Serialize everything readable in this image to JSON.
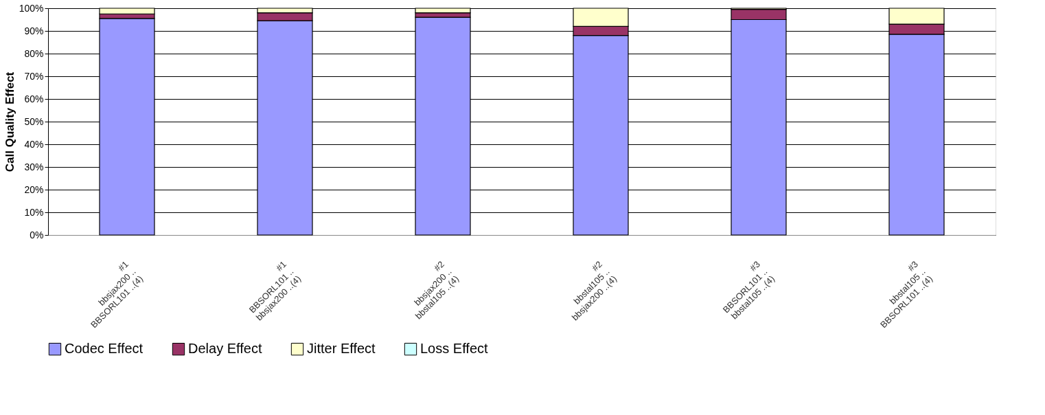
{
  "chart_data": {
    "type": "bar",
    "stacked": true,
    "ylabel": "Call Quality Effect",
    "categories": [
      "#1\nbbsjax200 ..\nBBSORL101 ..(4)",
      "#1\nBBSORL101 ..\nbbsjax200 ..(4)",
      "#2\nbbsjax200 ..\nbbstal105 ..(4)",
      "#2\nbbstal105 ..\nbbsjax200 ..(4)",
      "#3\nBBSORL101 ..\nbbstal105 ..(4)",
      "#3\nbbstal105 ..\nBBSORL101 ..(4)"
    ],
    "series": [
      {
        "name": "Codec Effect",
        "color": "#9999ff",
        "values": [
          95.5,
          94.5,
          96,
          88,
          95,
          88.5
        ]
      },
      {
        "name": "Delay Effect",
        "color": "#993366",
        "values": [
          2,
          3.5,
          2,
          4,
          4.5,
          4.5
        ]
      },
      {
        "name": "Jitter Effect",
        "color": "#ffffcc",
        "values": [
          2.5,
          2,
          2,
          8,
          0.5,
          7
        ]
      },
      {
        "name": "Loss Effect",
        "color": "#ccffff",
        "values": [
          null,
          null,
          null,
          null,
          null,
          null
        ]
      }
    ],
    "ylim": [
      0,
      100
    ],
    "yticks": [
      {
        "value": 0,
        "label": "0%"
      },
      {
        "value": 10,
        "label": "10%"
      },
      {
        "value": 20,
        "label": "20%"
      },
      {
        "value": 30,
        "label": "30%"
      },
      {
        "value": 40,
        "label": "40%"
      },
      {
        "value": 50,
        "label": "50%"
      },
      {
        "value": 60,
        "label": "60%"
      },
      {
        "value": 70,
        "label": "70%"
      },
      {
        "value": 80,
        "label": "80%"
      },
      {
        "value": 90,
        "label": "90%"
      },
      {
        "value": 100,
        "label": "100%"
      }
    ],
    "grid": "y",
    "legend": "bottom"
  }
}
